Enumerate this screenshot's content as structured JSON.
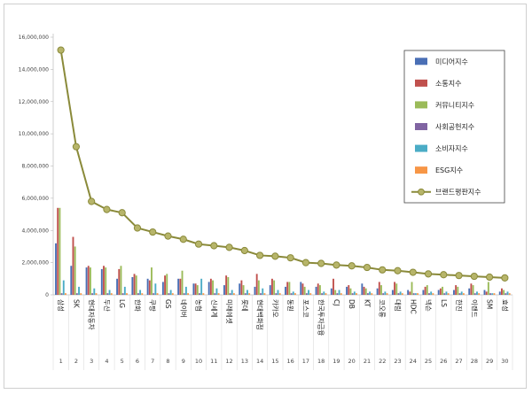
{
  "chart_data": {
    "type": "bar",
    "ylim": [
      0,
      16000000
    ],
    "yticks": [
      "0",
      "2,000,000",
      "4,000,000",
      "6,000,000",
      "8,000,000",
      "10,000,000",
      "12,000,000",
      "14,000,000",
      "16,000,000"
    ],
    "categories": [
      "삼성",
      "SK",
      "현대자동차",
      "두산",
      "LG",
      "한화",
      "쿠팡",
      "GS",
      "네이버",
      "농협",
      "신세계",
      "미래에셋",
      "롯데",
      "현대백화점",
      "카카오",
      "동원",
      "포스코",
      "한국투자금융",
      "CJ",
      "DB",
      "KT",
      "코오롱",
      "대림",
      "HDC",
      "넥슨",
      "LS",
      "한진",
      "이랜드",
      "SM",
      "효성"
    ],
    "numbers": [
      "1",
      "2",
      "3",
      "4",
      "5",
      "6",
      "7",
      "8",
      "9",
      "10",
      "11",
      "12",
      "13",
      "14",
      "15",
      "16",
      "17",
      "18",
      "19",
      "20",
      "21",
      "22",
      "23",
      "24",
      "25",
      "26",
      "27",
      "28",
      "29",
      "30"
    ],
    "legend_position": "top-right",
    "series": [
      {
        "name": "미디어지수",
        "color": "#4a6fb5",
        "kind": "bar",
        "values": [
          3200000,
          1800000,
          1700000,
          1600000,
          1000000,
          1100000,
          1000000,
          800000,
          1000000,
          700000,
          800000,
          600000,
          700000,
          500000,
          600000,
          500000,
          800000,
          500000,
          400000,
          500000,
          700000,
          400000,
          300000,
          300000,
          300000,
          300000,
          300000,
          400000,
          300000,
          200000
        ]
      },
      {
        "name": "소통지수",
        "color": "#c0504d",
        "kind": "bar",
        "values": [
          5400000,
          3600000,
          1800000,
          1800000,
          1600000,
          1300000,
          900000,
          1200000,
          1000000,
          700000,
          1000000,
          1200000,
          900000,
          1300000,
          1000000,
          800000,
          700000,
          700000,
          1000000,
          600000,
          500000,
          800000,
          800000,
          200000,
          500000,
          400000,
          600000,
          700000,
          200000,
          400000
        ]
      },
      {
        "name": "커뮤니티지수",
        "color": "#9bbb59",
        "kind": "bar",
        "values": [
          5400000,
          3000000,
          1700000,
          1700000,
          1800000,
          1200000,
          1700000,
          1300000,
          1500000,
          600000,
          900000,
          1100000,
          600000,
          900000,
          900000,
          800000,
          500000,
          600000,
          300000,
          400000,
          400000,
          600000,
          700000,
          800000,
          600000,
          500000,
          500000,
          600000,
          800000,
          300000
        ]
      },
      {
        "name": "사회공헌지수",
        "color": "#8064a2",
        "kind": "bar",
        "values": [
          100000,
          100000,
          100000,
          100000,
          100000,
          100000,
          100000,
          100000,
          100000,
          100000,
          100000,
          100000,
          100000,
          100000,
          100000,
          100000,
          100000,
          100000,
          100000,
          100000,
          100000,
          100000,
          100000,
          100000,
          100000,
          100000,
          100000,
          100000,
          100000,
          100000
        ]
      },
      {
        "name": "소비자지수",
        "color": "#4bacc6",
        "kind": "bar",
        "values": [
          900000,
          500000,
          400000,
          300000,
          500000,
          300000,
          700000,
          300000,
          500000,
          1000000,
          400000,
          300000,
          300000,
          400000,
          300000,
          200000,
          300000,
          200000,
          300000,
          200000,
          200000,
          200000,
          200000,
          100000,
          200000,
          200000,
          200000,
          200000,
          100000,
          200000
        ]
      },
      {
        "name": "ESG지수",
        "color": "#f79646",
        "kind": "bar",
        "values": [
          100000,
          100000,
          100000,
          100000,
          100000,
          100000,
          100000,
          100000,
          100000,
          100000,
          100000,
          100000,
          100000,
          100000,
          100000,
          100000,
          100000,
          100000,
          100000,
          100000,
          100000,
          100000,
          100000,
          100000,
          100000,
          100000,
          100000,
          100000,
          100000,
          100000
        ]
      },
      {
        "name": "브랜드평판지수",
        "color": "#8a8a3a",
        "kind": "line",
        "values": [
          15200000,
          9200000,
          5800000,
          5300000,
          5100000,
          4150000,
          3900000,
          3650000,
          3450000,
          3150000,
          3050000,
          2950000,
          2750000,
          2450000,
          2400000,
          2300000,
          2000000,
          1950000,
          1850000,
          1800000,
          1700000,
          1550000,
          1500000,
          1400000,
          1300000,
          1250000,
          1200000,
          1150000,
          1100000,
          1050000
        ]
      }
    ]
  }
}
